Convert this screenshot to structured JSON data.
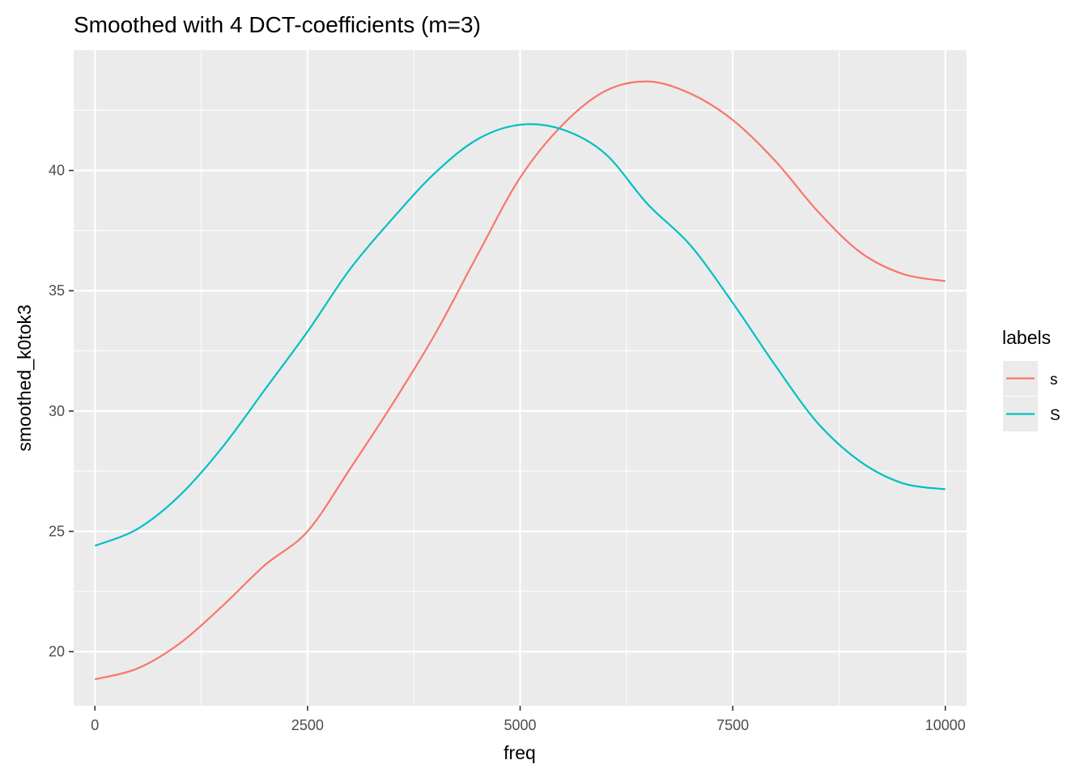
{
  "chart_data": {
    "type": "line",
    "title": "Smoothed with 4 DCT-coefficients (m=3)",
    "xlabel": "freq",
    "ylabel": "smoothed_k0tok3",
    "xlim": [
      -250,
      10250
    ],
    "ylim": [
      17.75,
      45.0
    ],
    "x_ticks": [
      0,
      2500,
      5000,
      7500,
      10000
    ],
    "x_tick_labels": [
      "0",
      "2500",
      "5000",
      "7500",
      "10000"
    ],
    "y_ticks": [
      20,
      25,
      30,
      35,
      40
    ],
    "y_tick_labels": [
      "20",
      "25",
      "30",
      "35",
      "40"
    ],
    "grid": true,
    "legend": {
      "title": "labels",
      "placement": "right"
    },
    "background": "#ebebeb",
    "series": [
      {
        "name": "s",
        "color": "#F8766D",
        "x": [
          0,
          500,
          1000,
          1500,
          2000,
          2500,
          3000,
          3500,
          4000,
          4500,
          5000,
          5500,
          6000,
          6500,
          7000,
          7500,
          8000,
          8500,
          9000,
          9500,
          10000
        ],
        "y": [
          18.85,
          19.3,
          20.35,
          21.9,
          23.6,
          25.0,
          27.6,
          30.3,
          33.2,
          36.5,
          39.7,
          41.9,
          43.3,
          43.7,
          43.2,
          42.1,
          40.4,
          38.3,
          36.6,
          35.7,
          35.4
        ]
      },
      {
        "name": "S",
        "color": "#00BFC4",
        "x": [
          0,
          500,
          1000,
          1500,
          2000,
          2500,
          3000,
          3500,
          4000,
          4500,
          5000,
          5500,
          6000,
          6500,
          7000,
          7500,
          8000,
          8500,
          9000,
          9500,
          10000
        ],
        "y": [
          24.4,
          25.1,
          26.5,
          28.5,
          30.9,
          33.3,
          35.9,
          38.0,
          39.9,
          41.3,
          41.9,
          41.7,
          40.7,
          38.6,
          36.9,
          34.5,
          31.9,
          29.5,
          27.9,
          27.0,
          26.75
        ]
      }
    ]
  }
}
